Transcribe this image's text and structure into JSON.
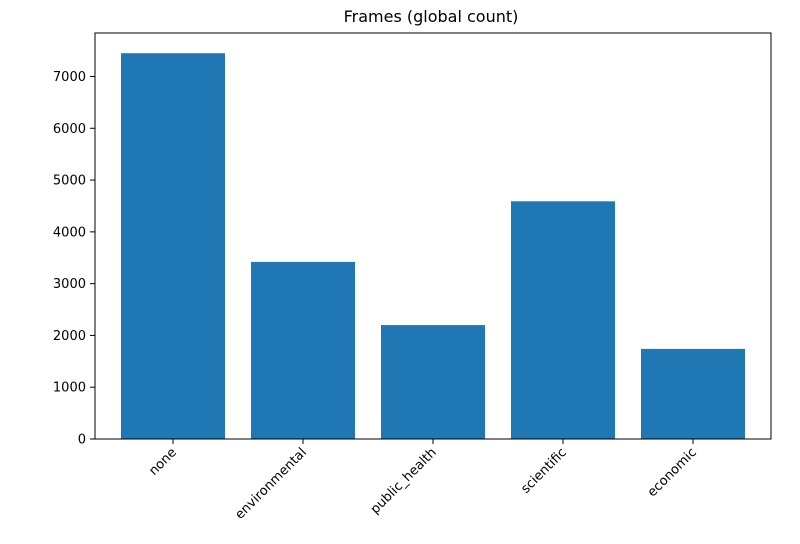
{
  "chart_data": {
    "type": "bar",
    "title": "Frames (global count)",
    "xlabel": "",
    "ylabel": "",
    "categories": [
      "none",
      "environmental",
      "public_health",
      "scientific",
      "economic"
    ],
    "values": [
      7450,
      3420,
      2200,
      4590,
      1740
    ],
    "ylim": [
      0,
      7840
    ],
    "yticks": [
      0,
      1000,
      2000,
      3000,
      4000,
      5000,
      6000,
      7000
    ],
    "grid": false,
    "legend": "none",
    "bar_color": "#1f77b4"
  }
}
